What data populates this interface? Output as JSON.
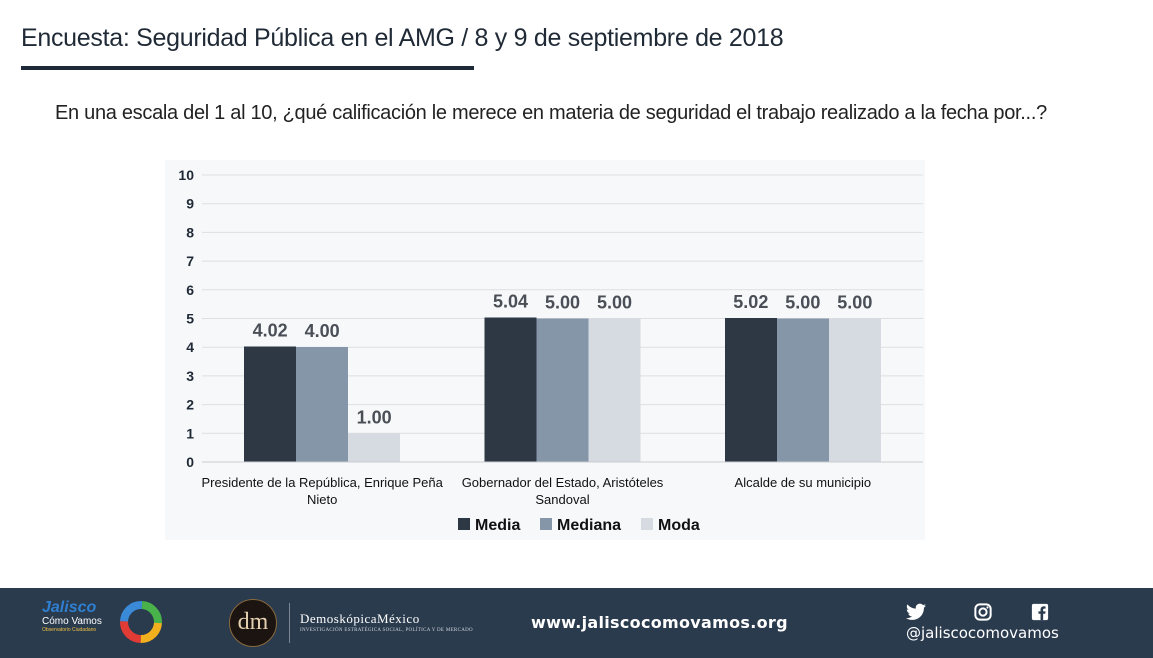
{
  "header": {
    "title": "Encuesta: Seguridad Pública en el AMG / 8 y 9 de septiembre de 2018",
    "question": "En una escala del 1 al 10, ¿qué calificación le merece en materia de seguridad el trabajo realizado a la fecha por...?"
  },
  "chart_data": {
    "type": "bar",
    "title": "",
    "xlabel": "",
    "ylabel": "",
    "ylim": [
      0,
      10
    ],
    "yticks": [
      0,
      1,
      2,
      3,
      4,
      5,
      6,
      7,
      8,
      9,
      10
    ],
    "grid": true,
    "legend_position": "bottom",
    "categories": [
      [
        "Presidente de la República, Enrique Peña",
        "Nieto"
      ],
      [
        "Gobernador del Estado, Aristóteles",
        "Sandoval"
      ],
      [
        "Alcalde de su municipio"
      ]
    ],
    "series": [
      {
        "name": "Media",
        "values": [
          4.02,
          5.04,
          5.02
        ],
        "labels": [
          "4.02",
          "5.04",
          "5.02"
        ],
        "color": "#2e3744"
      },
      {
        "name": "Mediana",
        "values": [
          4.0,
          5.0,
          5.0
        ],
        "labels": [
          "4.00",
          "5.00",
          "5.00"
        ],
        "color": "#8696a9"
      },
      {
        "name": "Moda",
        "values": [
          1.0,
          5.0,
          5.0
        ],
        "labels": [
          "1.00",
          "5.00",
          "5.00"
        ],
        "color": "#d6dbe2"
      }
    ]
  },
  "footer": {
    "jcv_name": "Jalisco",
    "jcv_sub": "Cómo Vamos",
    "jcv_sub2": "Observatorio Ciudadano",
    "dm_monogram": "dm",
    "dm_name": "DemoskópicaMéxico",
    "dm_tagline": "INVESTIGACIÓN ESTRATÉGICA SOCIAL, POLÍTICA Y DE MERCADO",
    "website": "www.jaliscocomovamos.org",
    "social_icons": [
      "twitter-icon",
      "instagram-icon",
      "facebook-icon"
    ],
    "handle": "@jaliscocomovamos",
    "bg_color": "#2b3b4e"
  }
}
